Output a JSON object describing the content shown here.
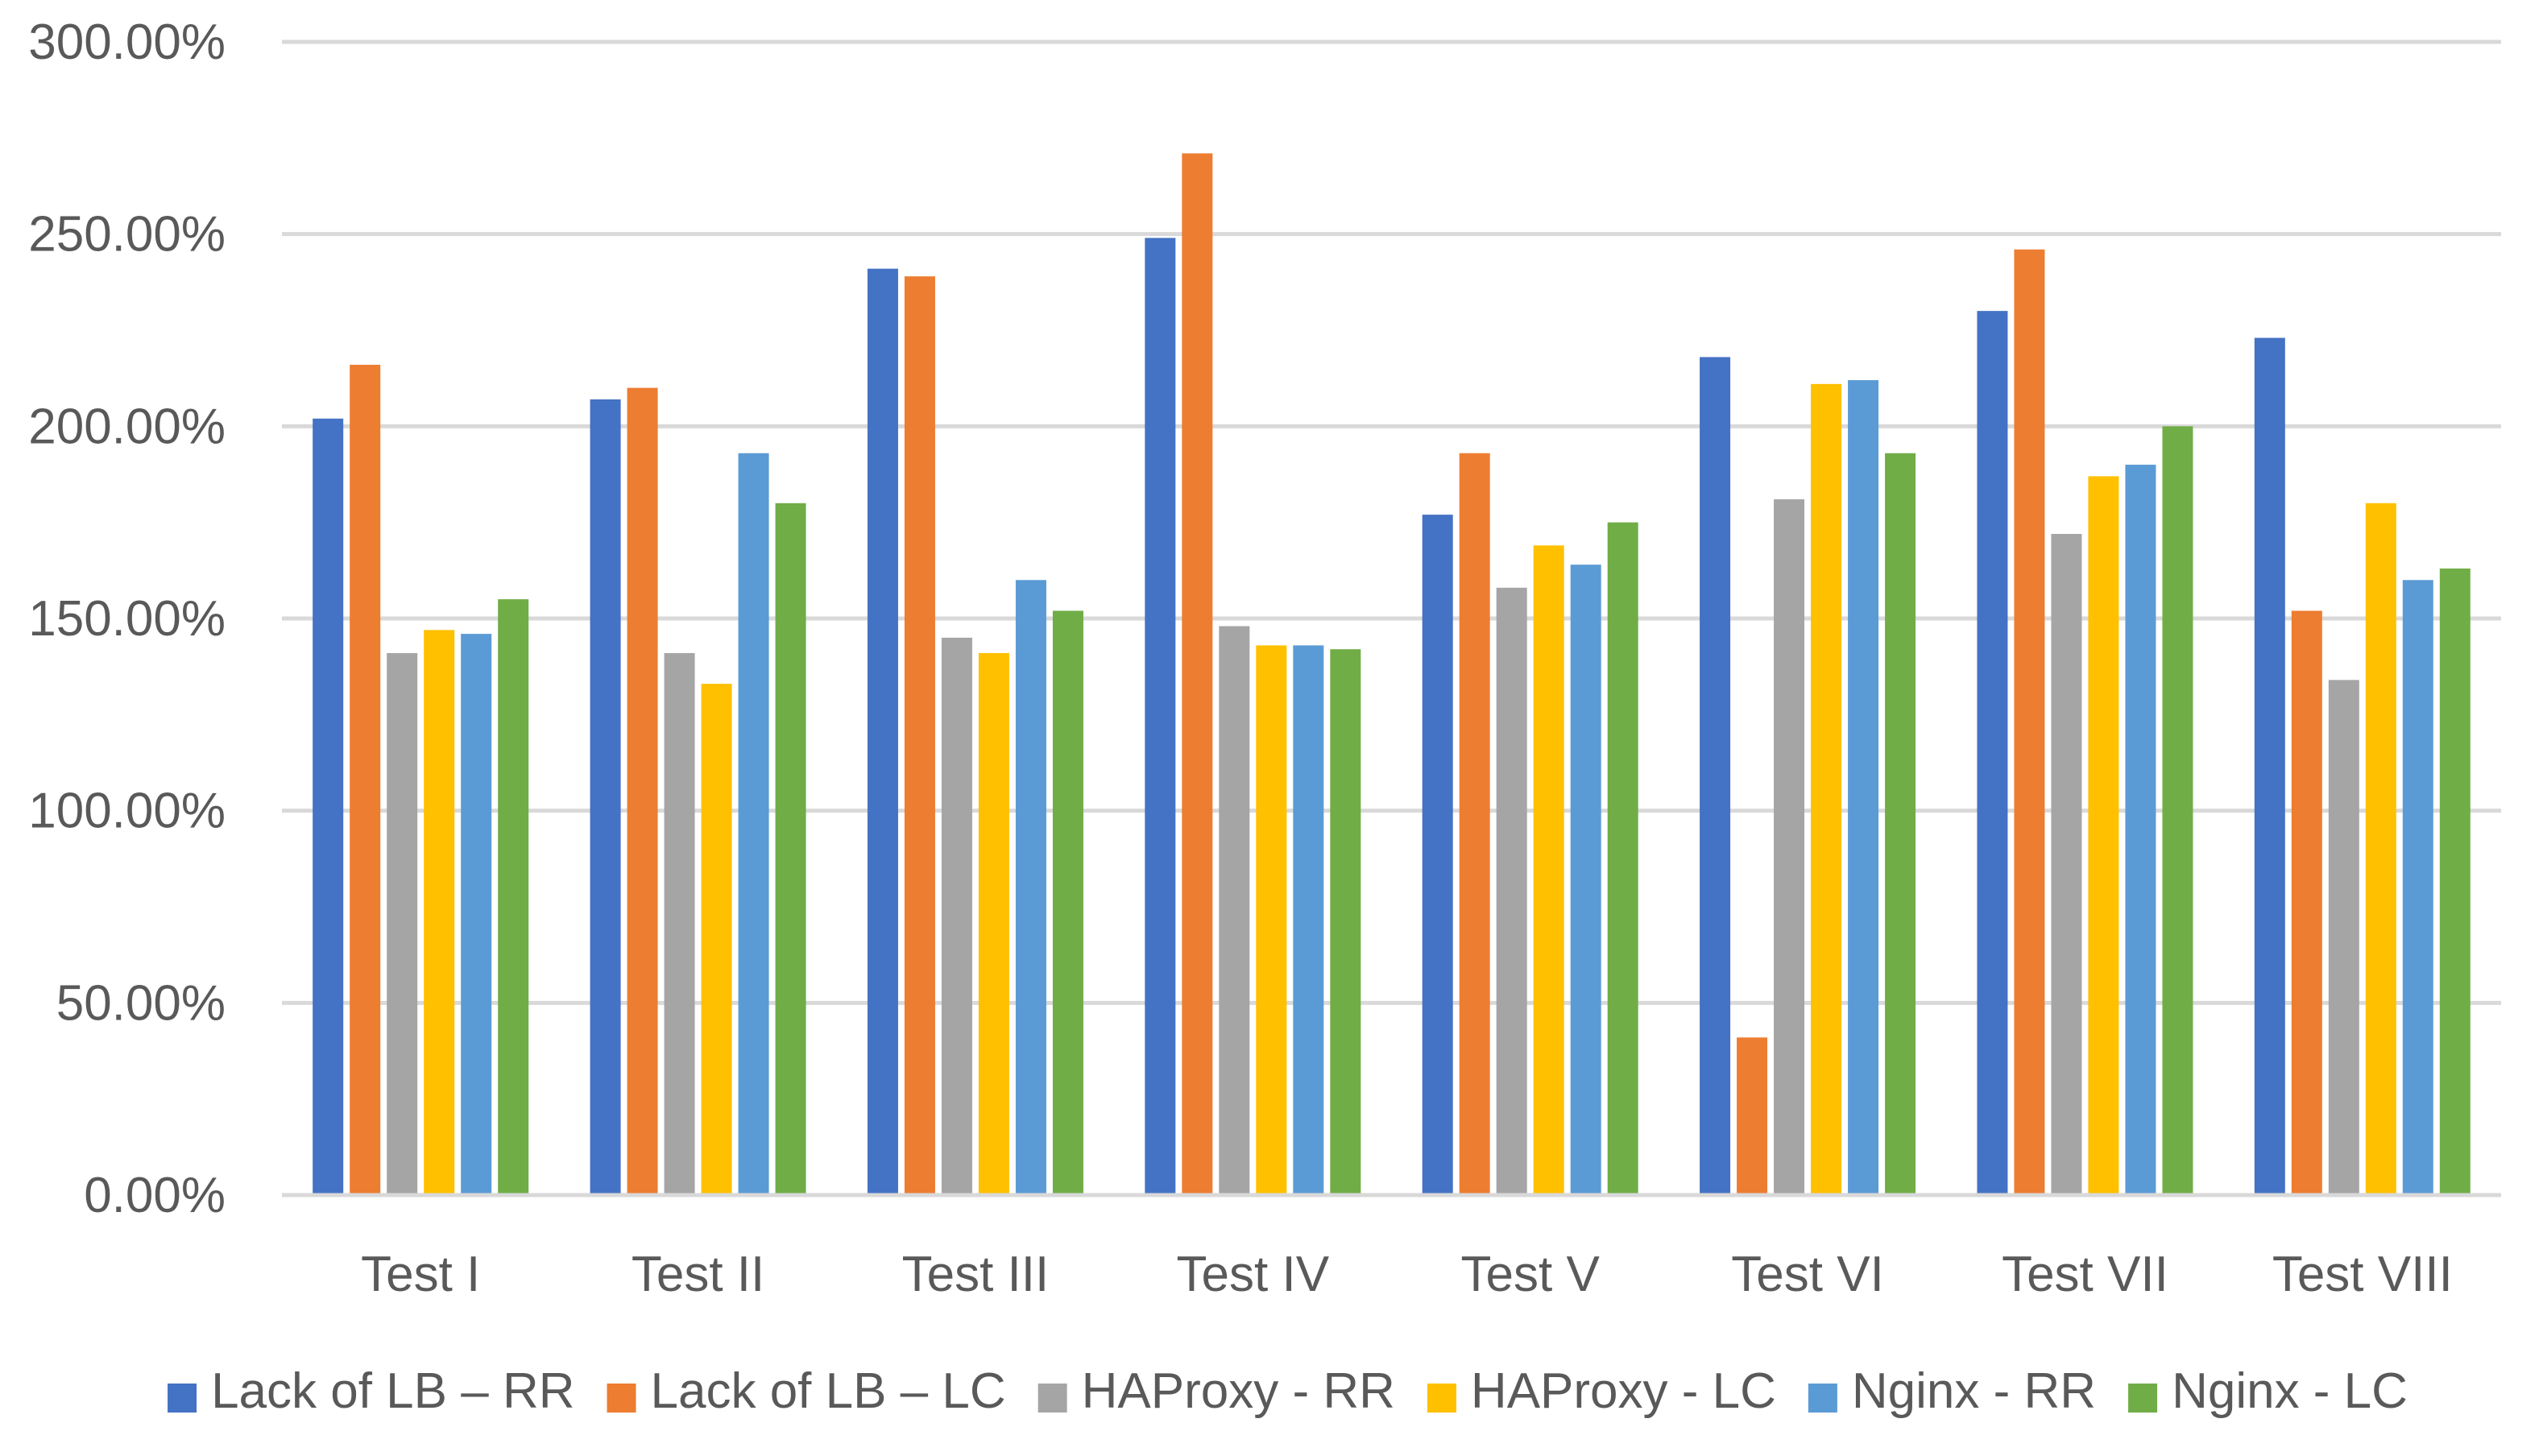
{
  "chart_data": {
    "type": "bar",
    "title": "",
    "xlabel": "",
    "ylabel": "",
    "ylim": [
      0,
      300
    ],
    "y_ticks": [
      0,
      50,
      100,
      150,
      200,
      250,
      300
    ],
    "y_tick_labels": [
      "0.00%",
      "50.00%",
      "100.00%",
      "150.00%",
      "200.00%",
      "250.00%",
      "300.00%"
    ],
    "grid": true,
    "legend_position": "bottom",
    "categories": [
      "Test I",
      "Test II",
      "Test III",
      "Test IV",
      "Test V",
      "Test VI",
      "Test VII",
      "Test VIII"
    ],
    "series": [
      {
        "name": "Lack of LB – RR",
        "color": "#4472C4",
        "values": [
          202,
          207,
          241,
          249,
          177,
          218,
          230,
          223
        ]
      },
      {
        "name": "Lack of LB – LC",
        "color": "#ED7D31",
        "values": [
          216,
          210,
          239,
          271,
          193,
          41,
          246,
          152
        ]
      },
      {
        "name": "HAProxy - RR",
        "color": "#A5A5A5",
        "values": [
          141,
          141,
          145,
          148,
          158,
          181,
          172,
          134
        ]
      },
      {
        "name": "HAProxy - LC",
        "color": "#FFC000",
        "values": [
          147,
          133,
          141,
          143,
          169,
          211,
          187,
          180
        ]
      },
      {
        "name": "Nginx - RR",
        "color": "#5B9BD5",
        "values": [
          146,
          193,
          160,
          143,
          164,
          212,
          190,
          160
        ]
      },
      {
        "name": "Nginx - LC",
        "color": "#70AD47",
        "values": [
          155,
          180,
          152,
          142,
          175,
          193,
          200,
          163
        ]
      }
    ]
  }
}
